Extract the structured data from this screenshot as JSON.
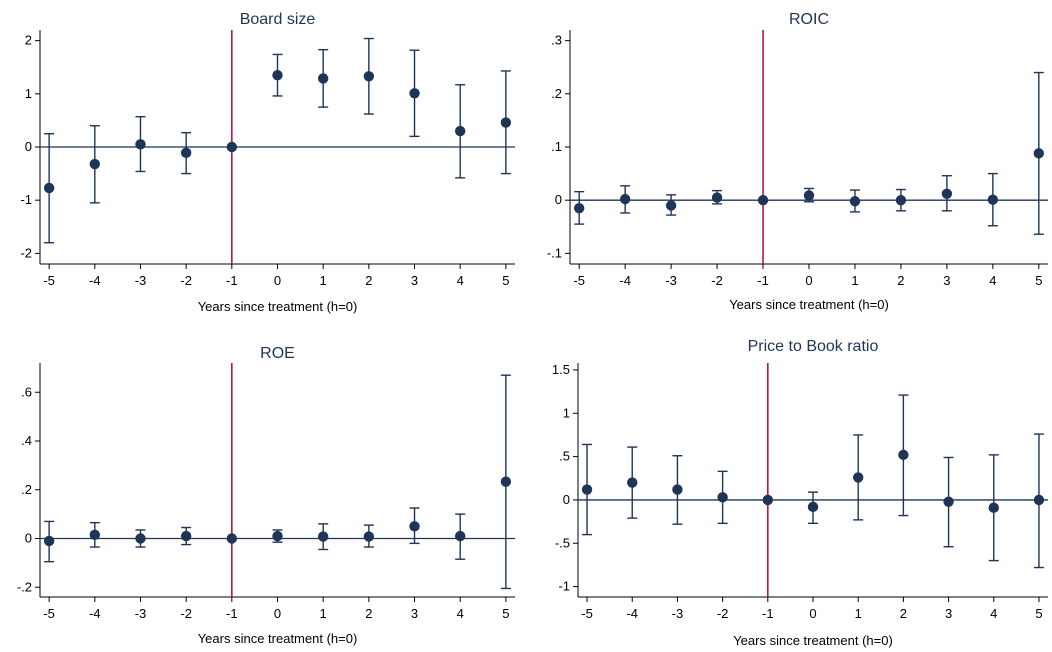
{
  "colors": {
    "series": "#1f3558",
    "treatment_line": "#c0143c",
    "title": "#1f3558"
  },
  "chart_data": [
    {
      "type": "scatter",
      "title": "Board size",
      "xlabel": "Years since treatment (h=0)",
      "ylabel": "",
      "x": [
        -5,
        -4,
        -3,
        -2,
        -1,
        0,
        1,
        2,
        3,
        4,
        5
      ],
      "xticks": [
        "-5",
        "-4",
        "-3",
        "-2",
        "-1",
        "0",
        "1",
        "2",
        "3",
        "4",
        "5"
      ],
      "y": [
        -0.77,
        -0.32,
        0.05,
        -0.11,
        0.0,
        1.35,
        1.29,
        1.33,
        1.01,
        0.3,
        0.46
      ],
      "lower": [
        -1.8,
        -1.05,
        -0.46,
        -0.5,
        0.0,
        0.96,
        0.75,
        0.62,
        0.2,
        -0.58,
        -0.5
      ],
      "upper": [
        0.25,
        0.4,
        0.57,
        0.27,
        0.0,
        1.74,
        1.83,
        2.04,
        1.82,
        1.17,
        1.43
      ],
      "yticks": [
        -2,
        -1,
        0,
        1,
        2
      ],
      "ytick_labels": [
        "-2",
        "-1",
        "0",
        "1",
        "2"
      ],
      "ylim": [
        -2.2,
        2.2
      ],
      "xlim": [
        -5.2,
        5.2
      ],
      "reference_line_x": -1,
      "reference_line_y": 0,
      "grid": false
    },
    {
      "type": "scatter",
      "title": "ROIC",
      "xlabel": "Years since treatment (h=0)",
      "ylabel": "",
      "x": [
        -5,
        -4,
        -3,
        -2,
        -1,
        0,
        1,
        2,
        3,
        4,
        5
      ],
      "xticks": [
        "-5",
        "-4",
        "-3",
        "-2",
        "-1",
        "0",
        "1",
        "2",
        "3",
        "4",
        "5"
      ],
      "y": [
        -0.015,
        0.002,
        -0.01,
        0.005,
        0.0,
        0.009,
        -0.002,
        0.0,
        0.012,
        0.001,
        0.088
      ],
      "lower": [
        -0.045,
        -0.024,
        -0.028,
        -0.007,
        0.0,
        -0.003,
        -0.022,
        -0.02,
        -0.02,
        -0.048,
        -0.064
      ],
      "upper": [
        0.016,
        0.027,
        0.01,
        0.018,
        0.0,
        0.022,
        0.019,
        0.02,
        0.046,
        0.05,
        0.24
      ],
      "yticks": [
        -0.1,
        0,
        0.1,
        0.2,
        0.3
      ],
      "ytick_labels": [
        "-.1",
        "0",
        ".1",
        ".2",
        ".3"
      ],
      "ylim": [
        -0.12,
        0.32
      ],
      "xlim": [
        -5.2,
        5.2
      ],
      "reference_line_x": -1,
      "reference_line_y": 0,
      "grid": false
    },
    {
      "type": "scatter",
      "title": "ROE",
      "xlabel": "Years since treatment (h=0)",
      "ylabel": "",
      "x": [
        -5,
        -4,
        -3,
        -2,
        -1,
        0,
        1,
        2,
        3,
        4,
        5
      ],
      "xticks": [
        "-5",
        "-4",
        "-3",
        "-2",
        "-1",
        "0",
        "1",
        "2",
        "3",
        "4",
        "5"
      ],
      "y": [
        -0.01,
        0.015,
        0.0,
        0.01,
        0.0,
        0.01,
        0.008,
        0.008,
        0.05,
        0.01,
        0.233
      ],
      "lower": [
        -0.095,
        -0.035,
        -0.035,
        -0.025,
        0.0,
        -0.015,
        -0.045,
        -0.035,
        -0.02,
        -0.085,
        -0.205
      ],
      "upper": [
        0.07,
        0.065,
        0.035,
        0.045,
        0.0,
        0.035,
        0.06,
        0.055,
        0.125,
        0.1,
        0.67
      ],
      "yticks": [
        -0.2,
        0,
        0.2,
        0.4,
        0.6
      ],
      "ytick_labels": [
        "-.2",
        "0",
        ".2",
        ".4",
        ".6"
      ],
      "ylim": [
        -0.24,
        0.72
      ],
      "xlim": [
        -5.2,
        5.2
      ],
      "reference_line_x": -1,
      "reference_line_y": 0,
      "grid": false
    },
    {
      "type": "scatter",
      "title": "Price to Book ratio",
      "xlabel": "Years since treatment (h=0)",
      "ylabel": "",
      "x": [
        -5,
        -4,
        -3,
        -2,
        -1,
        0,
        1,
        2,
        3,
        4,
        5
      ],
      "xticks": [
        "-5",
        "-4",
        "-3",
        "-2",
        "-1",
        "0",
        "1",
        "2",
        "3",
        "4",
        "5"
      ],
      "y": [
        0.12,
        0.2,
        0.12,
        0.03,
        0.0,
        -0.08,
        0.26,
        0.52,
        -0.02,
        -0.09,
        0.0
      ],
      "lower": [
        -0.4,
        -0.21,
        -0.28,
        -0.27,
        0.0,
        -0.27,
        -0.23,
        -0.18,
        -0.54,
        -0.7,
        -0.78
      ],
      "upper": [
        0.64,
        0.61,
        0.51,
        0.33,
        0.0,
        0.09,
        0.75,
        1.21,
        0.49,
        0.52,
        0.76
      ],
      "yticks": [
        -1,
        -0.5,
        0,
        0.5,
        1,
        1.5
      ],
      "ytick_labels": [
        "-1",
        "-.5",
        "0",
        ".5",
        "1",
        "1.5"
      ],
      "ylim": [
        -1.12,
        1.58
      ],
      "xlim": [
        -5.2,
        5.2
      ],
      "reference_line_x": -1,
      "reference_line_y": 0,
      "grid": false
    }
  ]
}
